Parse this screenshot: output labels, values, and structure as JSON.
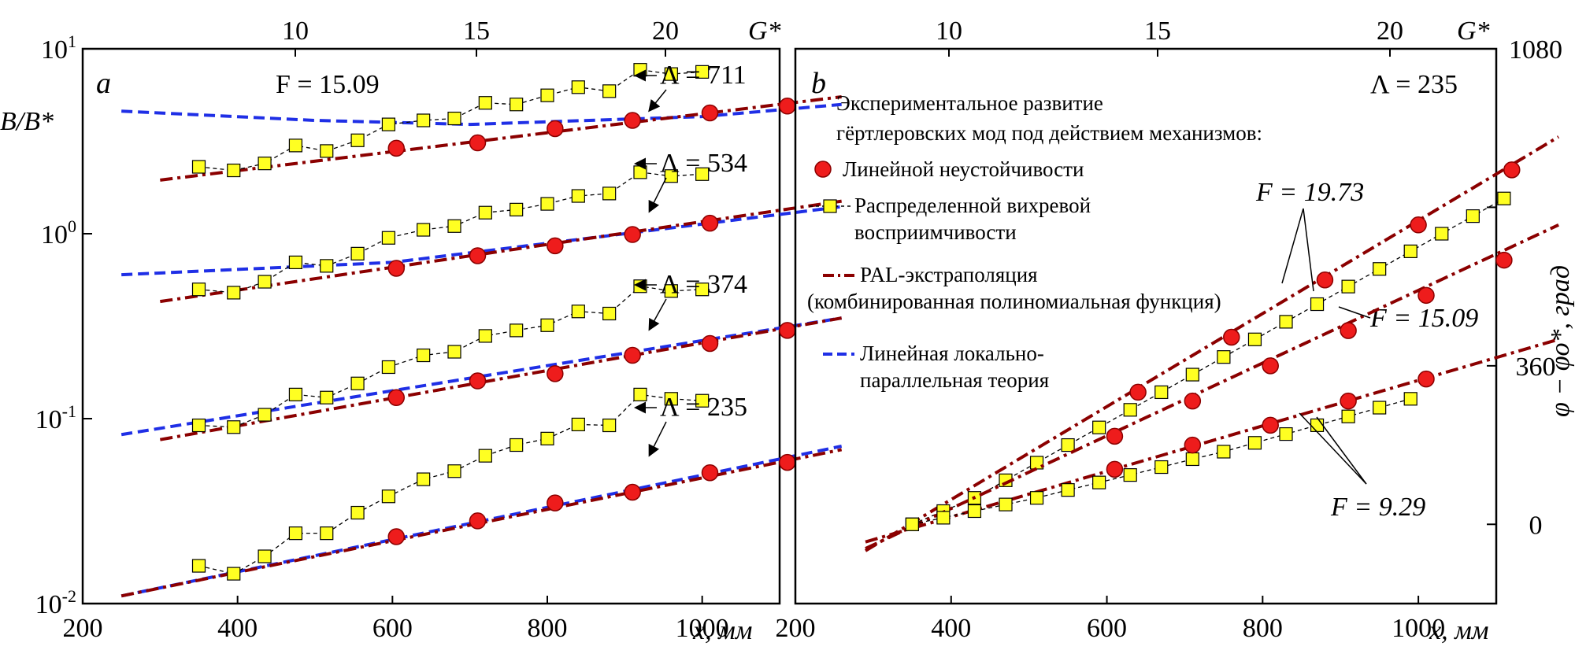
{
  "colors": {
    "pal": "#8b0000",
    "lpt": "#1f2fe6",
    "marker_red": "#ee1c1c",
    "marker_yellow": "#ffff22"
  },
  "chart_data": [
    {
      "panel": "a",
      "type": "line",
      "yscale": "log",
      "xlim": [
        200,
        1100
      ],
      "ylim_exp": [
        -2,
        1
      ],
      "xlabel": "x, мм",
      "ylabel": "B/B*",
      "x_ticks": [
        200,
        400,
        600,
        800,
        1000
      ],
      "y_ticks": [
        "10-2",
        "10-1",
        "100",
        "101"
      ],
      "top_axis": {
        "label": "G*",
        "ticks": [
          10,
          15,
          20
        ],
        "positions_x": [
          375,
          605,
          845
        ]
      },
      "annotation": "F = 15.09",
      "groups": [
        {
          "label": "Λ = 711",
          "label_pos": [
            838,
            106
          ],
          "arrow_to": [
            825,
            140
          ],
          "yellow_x": [
            350,
            395,
            435,
            475,
            515,
            555,
            595,
            640,
            680,
            720,
            760,
            800,
            840,
            880,
            920,
            960,
            1000
          ],
          "yellow_y": [
            2.3,
            2.2,
            2.4,
            3.0,
            2.8,
            3.2,
            3.9,
            4.1,
            4.2,
            5.1,
            5.0,
            5.6,
            6.2,
            5.9,
            7.7,
            7.3,
            7.5
          ],
          "red_x": [
            605,
            710,
            810,
            910,
            1010,
            1110
          ],
          "red_y": [
            2.9,
            3.1,
            3.7,
            4.1,
            4.5,
            4.9
          ],
          "pal_x": [
            300,
            1180
          ],
          "pal_y": [
            1.95,
            5.5
          ],
          "lpt_x": [
            250,
            500,
            700,
            1000,
            1180
          ],
          "lpt_y": [
            4.6,
            4.1,
            3.9,
            4.3,
            5.0
          ]
        },
        {
          "label": "Λ = 534",
          "label_pos": [
            838,
            218
          ],
          "arrow_to": [
            825,
            268
          ],
          "yellow_x": [
            350,
            395,
            435,
            475,
            515,
            555,
            595,
            640,
            680,
            720,
            760,
            800,
            840,
            880,
            920,
            960,
            1000
          ],
          "yellow_y": [
            0.5,
            0.48,
            0.55,
            0.7,
            0.67,
            0.78,
            0.95,
            1.05,
            1.1,
            1.3,
            1.35,
            1.45,
            1.6,
            1.65,
            2.15,
            2.05,
            2.1
          ],
          "red_x": [
            605,
            710,
            810,
            910,
            1010
          ],
          "red_y": [
            0.65,
            0.76,
            0.86,
            0.99,
            1.14
          ],
          "pal_x": [
            300,
            1180
          ],
          "pal_y": [
            0.43,
            1.5
          ],
          "lpt_x": [
            250,
            600,
            900,
            1180
          ],
          "lpt_y": [
            0.6,
            0.7,
            1.0,
            1.4
          ]
        },
        {
          "label": "Λ = 374",
          "label_pos": [
            838,
            372
          ],
          "arrow_to": [
            825,
            418
          ],
          "yellow_x": [
            350,
            395,
            435,
            475,
            515,
            555,
            595,
            640,
            680,
            720,
            760,
            800,
            840,
            880,
            920,
            960,
            1000
          ],
          "yellow_y": [
            0.092,
            0.09,
            0.105,
            0.135,
            0.13,
            0.155,
            0.19,
            0.22,
            0.23,
            0.28,
            0.3,
            0.32,
            0.38,
            0.37,
            0.52,
            0.49,
            0.5
          ],
          "red_x": [
            605,
            710,
            810,
            910,
            1010,
            1110
          ],
          "red_y": [
            0.13,
            0.16,
            0.175,
            0.22,
            0.255,
            0.3
          ],
          "pal_x": [
            300,
            1180
          ],
          "pal_y": [
            0.077,
            0.35
          ],
          "lpt_x": [
            250,
            1180
          ],
          "lpt_y": [
            0.082,
            0.35
          ]
        },
        {
          "label": "Λ = 235",
          "label_pos": [
            838,
            528
          ],
          "arrow_to": [
            825,
            578
          ],
          "yellow_x": [
            350,
            395,
            435,
            475,
            515,
            555,
            595,
            640,
            680,
            720,
            760,
            800,
            840,
            880,
            920,
            960,
            1000
          ],
          "yellow_y": [
            0.016,
            0.0145,
            0.018,
            0.024,
            0.024,
            0.031,
            0.038,
            0.047,
            0.052,
            0.063,
            0.072,
            0.078,
            0.093,
            0.092,
            0.135,
            0.128,
            0.125
          ],
          "red_x": [
            605,
            710,
            810,
            910,
            1010,
            1110
          ],
          "red_y": [
            0.023,
            0.028,
            0.035,
            0.04,
            0.051,
            0.058
          ],
          "pal_x": [
            250,
            1180
          ],
          "pal_y": [
            0.011,
            0.068
          ],
          "lpt_x": [
            250,
            1180
          ],
          "lpt_y": [
            0.011,
            0.071
          ]
        }
      ]
    },
    {
      "panel": "b",
      "type": "line",
      "xlim": [
        200,
        1100
      ],
      "ylim": [
        -180,
        1080
      ],
      "xlabel": "x, мм",
      "ylabel": "φ − φo*, град",
      "x_ticks": [
        200,
        400,
        600,
        800,
        1000
      ],
      "y_ticks_right": [
        0,
        360,
        720,
        1080
      ],
      "y_ticks_right_labels": [
        "0",
        "360",
        "",
        "1080"
      ],
      "top_axis": {
        "label": "G*",
        "ticks": [
          10,
          15,
          20
        ],
        "positions_x": [
          1205,
          1470,
          1765
        ]
      },
      "annotation": "Λ = 235",
      "legend": {
        "header_line1": "Экспериментальное развитие",
        "header_line2": "гёртлеровских мод под действием механизмов:",
        "item_red": "Линейной неустойчивости",
        "item_yellow_line1": "Распределенной вихревой",
        "item_yellow_line2": "восприимчивости",
        "item_pal_line1": "PAL-экстраполяция",
        "item_pal_line2": "(комбинированная полиномиальная функция)",
        "item_lpt_line1": "Линейная локально-",
        "item_lpt_line2": "параллельная теория"
      },
      "f_labels": {
        "top": "F = 19.73",
        "mid": "F = 15.09",
        "bot": "F = 9.29"
      },
      "curves": [
        {
          "F": "19.73",
          "yellow_x": [
            350,
            390,
            430,
            470,
            510,
            550,
            590,
            630,
            670,
            710,
            750,
            790,
            830,
            870,
            910,
            950,
            990,
            1030,
            1070,
            1110
          ],
          "yellow_y": [
            0,
            30,
            60,
            100,
            140,
            180,
            220,
            260,
            300,
            340,
            380,
            420,
            460,
            500,
            540,
            580,
            620,
            660,
            700,
            740
          ],
          "red_x": [
            640,
            760,
            880,
            1000,
            1120
          ],
          "red_y": [
            300,
            425,
            555,
            680,
            805
          ],
          "pal_x": [
            290,
            1180
          ],
          "pal_y": [
            -60,
            880
          ]
        },
        {
          "F": "15.09",
          "red_x": [
            610,
            710,
            810,
            910,
            1010,
            1110
          ],
          "red_y": [
            200,
            280,
            360,
            440,
            520,
            600
          ],
          "pal_x": [
            290,
            1180
          ],
          "pal_y": [
            -55,
            680
          ]
        },
        {
          "F": "9.29",
          "yellow_x": [
            350,
            390,
            430,
            470,
            510,
            550,
            590,
            630,
            670,
            710,
            750,
            790,
            830,
            870,
            910,
            950,
            990
          ],
          "yellow_y": [
            0,
            15,
            30,
            45,
            60,
            78,
            95,
            112,
            130,
            148,
            165,
            185,
            205,
            225,
            245,
            265,
            285
          ],
          "red_x": [
            610,
            710,
            810,
            910,
            1010
          ],
          "red_y": [
            125,
            180,
            225,
            280,
            330
          ],
          "pal_x": [
            290,
            1180
          ],
          "pal_y": [
            -40,
            420
          ]
        }
      ]
    }
  ]
}
